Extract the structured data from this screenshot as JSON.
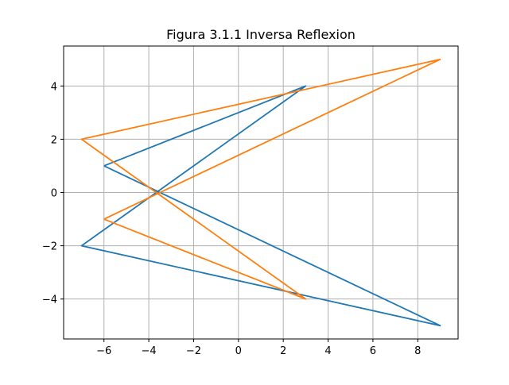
{
  "chart_data": {
    "type": "line",
    "title": "Figura 3.1.1 Inversa Reflexion",
    "xlabel": "",
    "ylabel": "",
    "xlim": [
      -7.8,
      9.8
    ],
    "ylim": [
      -5.5,
      5.5
    ],
    "xticks": [
      -6,
      -4,
      -2,
      0,
      2,
      4,
      6,
      8
    ],
    "yticks": [
      -4,
      -2,
      0,
      2,
      4
    ],
    "xtick_labels": [
      "−6",
      "−4",
      "−2",
      "0",
      "2",
      "4",
      "6",
      "8"
    ],
    "ytick_labels": [
      "−4",
      "−2",
      "0",
      "2",
      "4"
    ],
    "grid": true,
    "series": [
      {
        "color": "#1f77b4",
        "x": [
          -6,
          3,
          -7,
          9,
          -6
        ],
        "y": [
          1,
          4,
          -2,
          -5,
          1
        ]
      },
      {
        "color": "#ff7f0e",
        "x": [
          -6,
          9,
          -7,
          3,
          -6
        ],
        "y": [
          -1,
          5,
          2,
          -4,
          -1
        ]
      }
    ]
  }
}
